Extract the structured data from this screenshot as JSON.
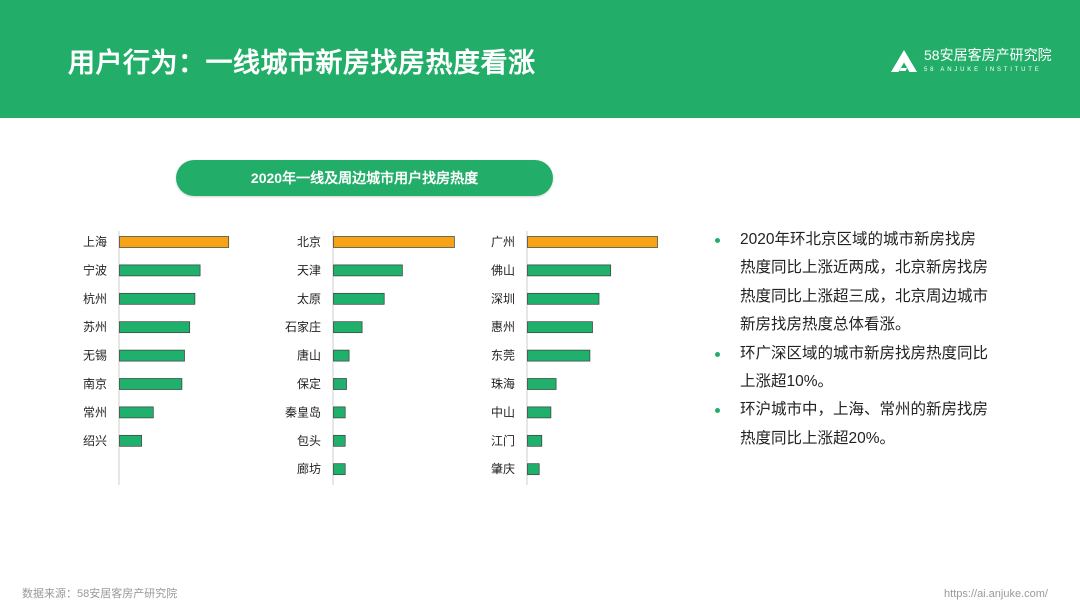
{
  "header": {
    "title": "用户行为：一线城市新房找房热度看涨",
    "logo_name": "58安居客房产研究院",
    "logo_subtitle": "58 ANJUKE INSTITUTE",
    "logo_icon": "anjuke-logo-icon"
  },
  "chart_title": "2020年一线及周边城市用户找房热度",
  "chart_data": [
    {
      "type": "bar",
      "orientation": "horizontal",
      "categories": [
        "上海",
        "宁波",
        "杭州",
        "苏州",
        "无锡",
        "南京",
        "常州",
        "绍兴"
      ],
      "values": [
        84,
        62,
        58,
        54,
        50,
        48,
        26,
        17
      ],
      "highlight": "上海",
      "grid": false
    },
    {
      "type": "bar",
      "orientation": "horizontal",
      "categories": [
        "北京",
        "天津",
        "太原",
        "石家庄",
        "唐山",
        "保定",
        "秦皇岛",
        "包头",
        "廊坊"
      ],
      "values": [
        93,
        53,
        39,
        22,
        12,
        10,
        9,
        9,
        9
      ],
      "highlight": "北京",
      "grid": false
    },
    {
      "type": "bar",
      "orientation": "horizontal",
      "categories": [
        "广州",
        "佛山",
        "深圳",
        "惠州",
        "东莞",
        "珠海",
        "中山",
        "江门",
        "肇庆"
      ],
      "values": [
        100,
        64,
        55,
        50,
        48,
        22,
        18,
        11,
        9
      ],
      "highlight": "广州",
      "grid": false
    }
  ],
  "notes": [
    {
      "lines": [
        "2020年环北京区域的城市新房找房",
        "热度同比上涨近两成，北京新房找房",
        "热度同比上涨超三成，北京周边城市",
        "新房找房热度总体看涨。"
      ]
    },
    {
      "lines": [
        "环广深区域的城市新房找房热度同比",
        "上涨超10%。"
      ]
    },
    {
      "lines": [
        "环沪城市中，上海、常州的新房找房",
        "热度同比上涨超20%。"
      ]
    }
  ],
  "footer": {
    "source": "数据来源：58安居客房产研究院",
    "url": "https://ai.anjuke.com/"
  },
  "colors": {
    "brand_green": "#22ae69",
    "bar": "#1fb16c",
    "bar_highlight": "#f5a417",
    "bar_outline": "#3c3c3c",
    "axis": "#cccccc"
  }
}
